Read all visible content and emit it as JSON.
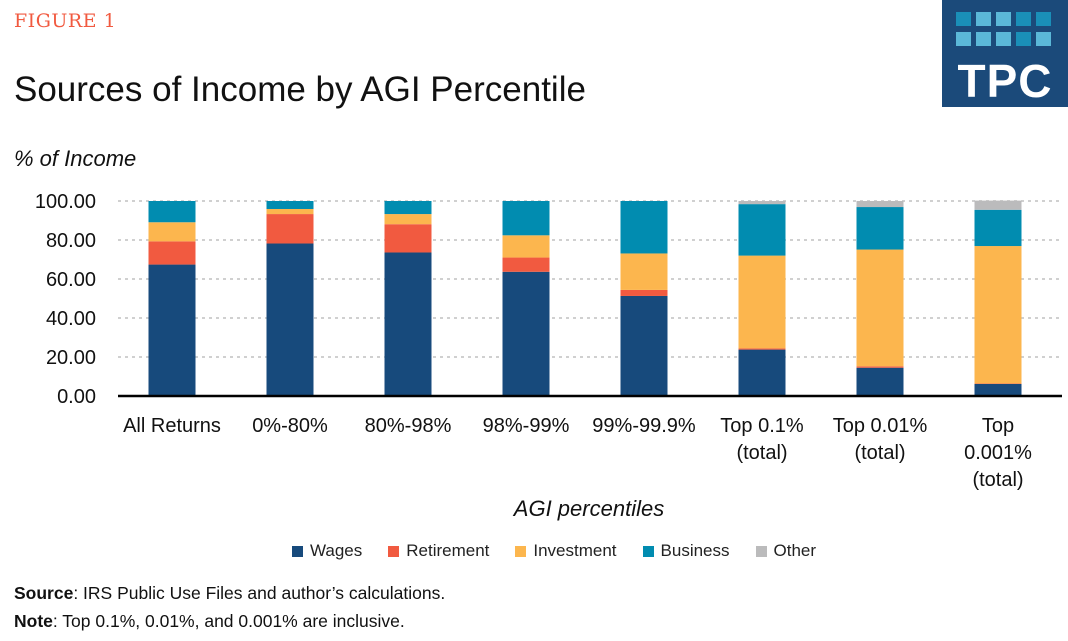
{
  "header": {
    "figure_label": "FIGURE 1",
    "logo_text": "TPC"
  },
  "chart_data": {
    "type": "bar",
    "stacked": true,
    "title": "Sources of Income by AGI Percentile",
    "ylabel": "% of Income",
    "xlabel": "AGI percentiles",
    "ylim": [
      0,
      100
    ],
    "yticks": [
      "0.00",
      "20.00",
      "40.00",
      "60.00",
      "80.00",
      "100.00"
    ],
    "grid": true,
    "legend_position": "bottom",
    "categories": [
      [
        "All Returns"
      ],
      [
        "0%-80%"
      ],
      [
        "80%-98%"
      ],
      [
        "98%-99%"
      ],
      [
        "99%-99.9%"
      ],
      [
        "Top 0.1%",
        "(total)"
      ],
      [
        "Top 0.01%",
        "(total)"
      ],
      [
        "Top",
        "0.001%",
        "(total)"
      ]
    ],
    "series": [
      {
        "name": "Wages",
        "color": "#174A7C",
        "values": [
          67.4,
          78.2,
          73.6,
          63.7,
          51.3,
          23.8,
          14.5,
          6.2
        ]
      },
      {
        "name": "Retirement",
        "color": "#F15A40",
        "values": [
          11.9,
          15.1,
          14.5,
          7.3,
          3.1,
          0.6,
          0.7,
          0.2
        ]
      },
      {
        "name": "Investment",
        "color": "#FCB64E",
        "values": [
          9.8,
          2.6,
          5.2,
          11.4,
          18.7,
          47.6,
          59.9,
          70.5
        ]
      },
      {
        "name": "Business",
        "color": "#018CB0",
        "values": [
          10.9,
          4.1,
          6.7,
          17.6,
          26.9,
          26.4,
          21.8,
          18.6
        ]
      },
      {
        "name": "Other",
        "color": "#BBBBBC",
        "values": [
          0,
          0,
          0,
          0,
          0,
          1.6,
          3.1,
          4.7
        ]
      }
    ]
  },
  "footer": {
    "source_label": "Source",
    "source_text": ": IRS Public Use Files and author’s calculations.",
    "note_label": "Note",
    "note_text": ": Top 0.1%, 0.01%, and 0.001% are inclusive."
  }
}
